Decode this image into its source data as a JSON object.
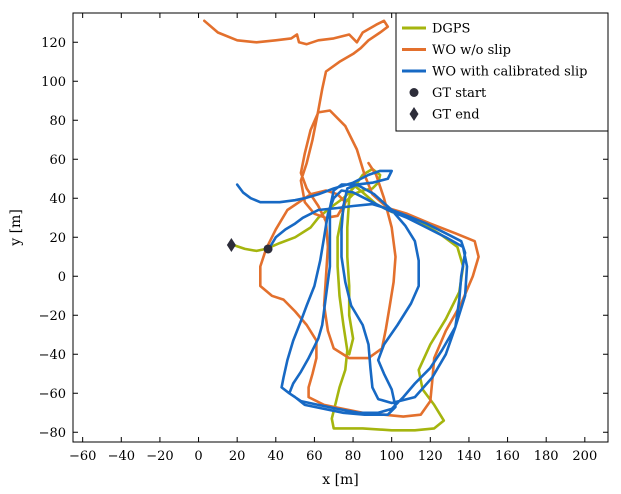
{
  "chart_data": {
    "type": "line",
    "xlabel": "x [m]",
    "ylabel": "y [m]",
    "xlim": [
      -65,
      212
    ],
    "ylim": [
      -85,
      135
    ],
    "xticks": [
      -60,
      -40,
      -20,
      0,
      20,
      40,
      60,
      80,
      100,
      120,
      140,
      160,
      180,
      200
    ],
    "yticks": [
      -80,
      -60,
      -40,
      -20,
      0,
      20,
      40,
      60,
      80,
      100,
      120
    ],
    "x_tick_labels": [
      "−60",
      "−40",
      "−20",
      "0",
      "20",
      "40",
      "60",
      "80",
      "100",
      "120",
      "140",
      "160",
      "180",
      "200"
    ],
    "y_tick_labels": [
      "−80",
      "−60",
      "−40",
      "−20",
      "0",
      "20",
      "40",
      "60",
      "80",
      "100",
      "120"
    ],
    "grid": false,
    "legend_position": "top-right",
    "series": [
      {
        "name": "DGPS",
        "color": "#a5b50e",
        "points": [
          [
            18,
            16
          ],
          [
            24,
            14
          ],
          [
            30,
            13
          ],
          [
            35,
            14
          ],
          [
            42,
            17
          ],
          [
            50,
            20
          ],
          [
            58,
            25
          ],
          [
            62,
            30
          ],
          [
            68,
            35
          ],
          [
            75,
            40
          ],
          [
            80,
            45
          ],
          [
            85,
            52
          ],
          [
            90,
            55
          ],
          [
            94,
            52
          ],
          [
            93,
            48
          ],
          [
            90,
            45
          ],
          [
            85,
            44
          ],
          [
            80,
            42
          ],
          [
            76,
            38
          ],
          [
            74,
            30
          ],
          [
            72,
            20
          ],
          [
            72,
            5
          ],
          [
            73,
            -10
          ],
          [
            75,
            -25
          ],
          [
            77,
            -38
          ],
          [
            76,
            -48
          ],
          [
            73,
            -57
          ],
          [
            71,
            -65
          ],
          [
            69,
            -73
          ],
          [
            70,
            -78
          ],
          [
            85,
            -78
          ],
          [
            100,
            -79
          ],
          [
            112,
            -79
          ],
          [
            122,
            -78
          ],
          [
            127,
            -74
          ],
          [
            122,
            -66
          ],
          [
            116,
            -58
          ],
          [
            114,
            -48
          ],
          [
            120,
            -35
          ],
          [
            128,
            -22
          ],
          [
            135,
            -8
          ],
          [
            137,
            5
          ],
          [
            134,
            15
          ],
          [
            126,
            21
          ],
          [
            118,
            26
          ],
          [
            110,
            30
          ],
          [
            100,
            33
          ],
          [
            92,
            37
          ],
          [
            85,
            43
          ],
          [
            80,
            47
          ],
          [
            78,
            40
          ],
          [
            77,
            25
          ],
          [
            77,
            10
          ],
          [
            78,
            -5
          ],
          [
            78,
            -20
          ],
          [
            80,
            -32
          ],
          [
            78,
            -40
          ]
        ]
      },
      {
        "name": "WO w/o slip",
        "color": "#e3702d",
        "points": [
          [
            3,
            131
          ],
          [
            10,
            125
          ],
          [
            20,
            121
          ],
          [
            30,
            120
          ],
          [
            40,
            121
          ],
          [
            48,
            122
          ],
          [
            51,
            124
          ],
          [
            52,
            120
          ],
          [
            56,
            119
          ],
          [
            62,
            121
          ],
          [
            70,
            122
          ],
          [
            78,
            124
          ],
          [
            82,
            120
          ],
          [
            85,
            125
          ],
          [
            92,
            129
          ],
          [
            96,
            131
          ],
          [
            98,
            128
          ],
          [
            94,
            125
          ],
          [
            88,
            121
          ],
          [
            84,
            117
          ],
          [
            80,
            114
          ],
          [
            73,
            110
          ],
          [
            66,
            105
          ],
          [
            64,
            96
          ],
          [
            62,
            85
          ],
          [
            59,
            70
          ],
          [
            56,
            58
          ],
          [
            53,
            49
          ],
          [
            55,
            38
          ],
          [
            60,
            32
          ],
          [
            66,
            30
          ],
          [
            72,
            31
          ],
          [
            76,
            38
          ],
          [
            72,
            42
          ],
          [
            66,
            44
          ],
          [
            58,
            42
          ],
          [
            52,
            38
          ],
          [
            46,
            34
          ],
          [
            40,
            24
          ],
          [
            35,
            14
          ],
          [
            32,
            5
          ],
          [
            32,
            -5
          ],
          [
            38,
            -10
          ],
          [
            44,
            -12
          ],
          [
            50,
            -18
          ],
          [
            56,
            -25
          ],
          [
            61,
            -33
          ],
          [
            61,
            -42
          ],
          [
            59,
            -50
          ],
          [
            57,
            -57
          ],
          [
            57,
            -62
          ],
          [
            65,
            -66
          ],
          [
            75,
            -68
          ],
          [
            85,
            -70
          ],
          [
            96,
            -71
          ],
          [
            106,
            -72
          ],
          [
            115,
            -71
          ],
          [
            120,
            -64
          ],
          [
            121,
            -54
          ],
          [
            122,
            -42
          ],
          [
            128,
            -28
          ],
          [
            136,
            -14
          ],
          [
            142,
            0
          ],
          [
            145,
            10
          ],
          [
            143,
            18
          ],
          [
            133,
            22
          ],
          [
            120,
            27
          ],
          [
            108,
            32
          ],
          [
            98,
            35
          ],
          [
            90,
            42
          ],
          [
            86,
            52
          ],
          [
            82,
            65
          ],
          [
            76,
            77
          ],
          [
            68,
            85
          ],
          [
            62,
            84
          ],
          [
            58,
            75
          ],
          [
            55,
            63
          ],
          [
            53,
            53
          ],
          [
            56,
            45
          ],
          [
            62,
            36
          ],
          [
            66,
            28
          ],
          [
            67,
            15
          ],
          [
            66,
            0
          ],
          [
            65,
            -15
          ],
          [
            67,
            -28
          ],
          [
            70,
            -37
          ],
          [
            78,
            -42
          ],
          [
            88,
            -42
          ],
          [
            95,
            -37
          ],
          [
            97,
            -27
          ],
          [
            99,
            -15
          ],
          [
            101,
            -3
          ],
          [
            102,
            10
          ],
          [
            100,
            25
          ],
          [
            96,
            40
          ],
          [
            92,
            52
          ],
          [
            88,
            58
          ]
        ]
      },
      {
        "name": "WO with calibrated slip",
        "color": "#1769c4",
        "points": [
          [
            20,
            47
          ],
          [
            23,
            43
          ],
          [
            27,
            40
          ],
          [
            32,
            38
          ],
          [
            42,
            38
          ],
          [
            50,
            39
          ],
          [
            55,
            40
          ],
          [
            62,
            42
          ],
          [
            70,
            45
          ],
          [
            80,
            48
          ],
          [
            88,
            52
          ],
          [
            94,
            54
          ],
          [
            100,
            54
          ],
          [
            98,
            50
          ],
          [
            90,
            48
          ],
          [
            82,
            47
          ],
          [
            74,
            47
          ],
          [
            70,
            44
          ],
          [
            68,
            35
          ],
          [
            68,
            20
          ],
          [
            68,
            5
          ],
          [
            66,
            -10
          ],
          [
            64,
            -25
          ],
          [
            62,
            -32
          ],
          [
            57,
            -42
          ],
          [
            53,
            -49
          ],
          [
            49,
            -55
          ],
          [
            47,
            -60
          ],
          [
            53,
            -64
          ],
          [
            62,
            -66
          ],
          [
            72,
            -68
          ],
          [
            83,
            -70
          ],
          [
            93,
            -70
          ],
          [
            100,
            -68
          ],
          [
            106,
            -62
          ],
          [
            112,
            -55
          ],
          [
            120,
            -47
          ],
          [
            126,
            -38
          ],
          [
            133,
            -26
          ],
          [
            138,
            -10
          ],
          [
            139,
            5
          ],
          [
            137,
            15
          ],
          [
            128,
            20
          ],
          [
            118,
            25
          ],
          [
            108,
            30
          ],
          [
            98,
            34
          ],
          [
            88,
            39
          ],
          [
            80,
            43
          ],
          [
            74,
            44
          ],
          [
            70,
            40
          ],
          [
            67,
            32
          ],
          [
            65,
            20
          ],
          [
            63,
            8
          ],
          [
            60,
            -5
          ],
          [
            56,
            -15
          ],
          [
            53,
            -23
          ],
          [
            49,
            -33
          ],
          [
            46,
            -43
          ],
          [
            44,
            -52
          ],
          [
            43,
            -57
          ],
          [
            47,
            -60
          ],
          [
            50,
            -62
          ],
          [
            55,
            -66
          ],
          [
            65,
            -68
          ],
          [
            75,
            -70
          ],
          [
            86,
            -71
          ],
          [
            98,
            -71
          ],
          [
            102,
            -67
          ],
          [
            100,
            -58
          ],
          [
            96,
            -50
          ],
          [
            93,
            -43
          ],
          [
            96,
            -35
          ],
          [
            103,
            -25
          ],
          [
            110,
            -14
          ],
          [
            114,
            -5
          ],
          [
            114,
            8
          ],
          [
            112,
            18
          ],
          [
            107,
            26
          ],
          [
            100,
            34
          ],
          [
            91,
            42
          ],
          [
            82,
            47
          ],
          [
            77,
            45
          ],
          [
            75,
            36
          ],
          [
            74,
            24
          ],
          [
            74,
            10
          ],
          [
            76,
            -3
          ],
          [
            79,
            -15
          ],
          [
            85,
            -25
          ],
          [
            88,
            -35
          ],
          [
            89,
            -47
          ],
          [
            90,
            -57
          ],
          [
            93,
            -63
          ],
          [
            100,
            -65
          ],
          [
            112,
            -62
          ],
          [
            121,
            -52
          ],
          [
            128,
            -40
          ],
          [
            133,
            -26
          ],
          [
            135,
            -12
          ],
          [
            136,
            0
          ],
          [
            138,
            12
          ],
          [
            136,
            18
          ],
          [
            128,
            22
          ],
          [
            118,
            27
          ],
          [
            108,
            31
          ],
          [
            100,
            34
          ],
          [
            90,
            37
          ],
          [
            80,
            36
          ],
          [
            72,
            35
          ],
          [
            62,
            34
          ],
          [
            54,
            30
          ],
          [
            50,
            27
          ],
          [
            45,
            24
          ],
          [
            40,
            20
          ],
          [
            37,
            15
          ]
        ]
      }
    ],
    "markers": [
      {
        "name": "GT start",
        "shape": "circle",
        "x": 36,
        "y": 14,
        "color": "#2d2d3a"
      },
      {
        "name": "GT end",
        "shape": "diamond",
        "x": 17,
        "y": 16,
        "color": "#2d2d3a"
      }
    ],
    "legend": [
      {
        "label": "DGPS",
        "kind": "line",
        "color": "#a5b50e"
      },
      {
        "label": "WO w/o slip",
        "kind": "line",
        "color": "#e3702d"
      },
      {
        "label": "WO with calibrated slip",
        "kind": "line",
        "color": "#1769c4"
      },
      {
        "label": "GT start",
        "kind": "circle",
        "color": "#2d2d3a"
      },
      {
        "label": "GT end",
        "kind": "diamond",
        "color": "#2d2d3a"
      }
    ]
  }
}
